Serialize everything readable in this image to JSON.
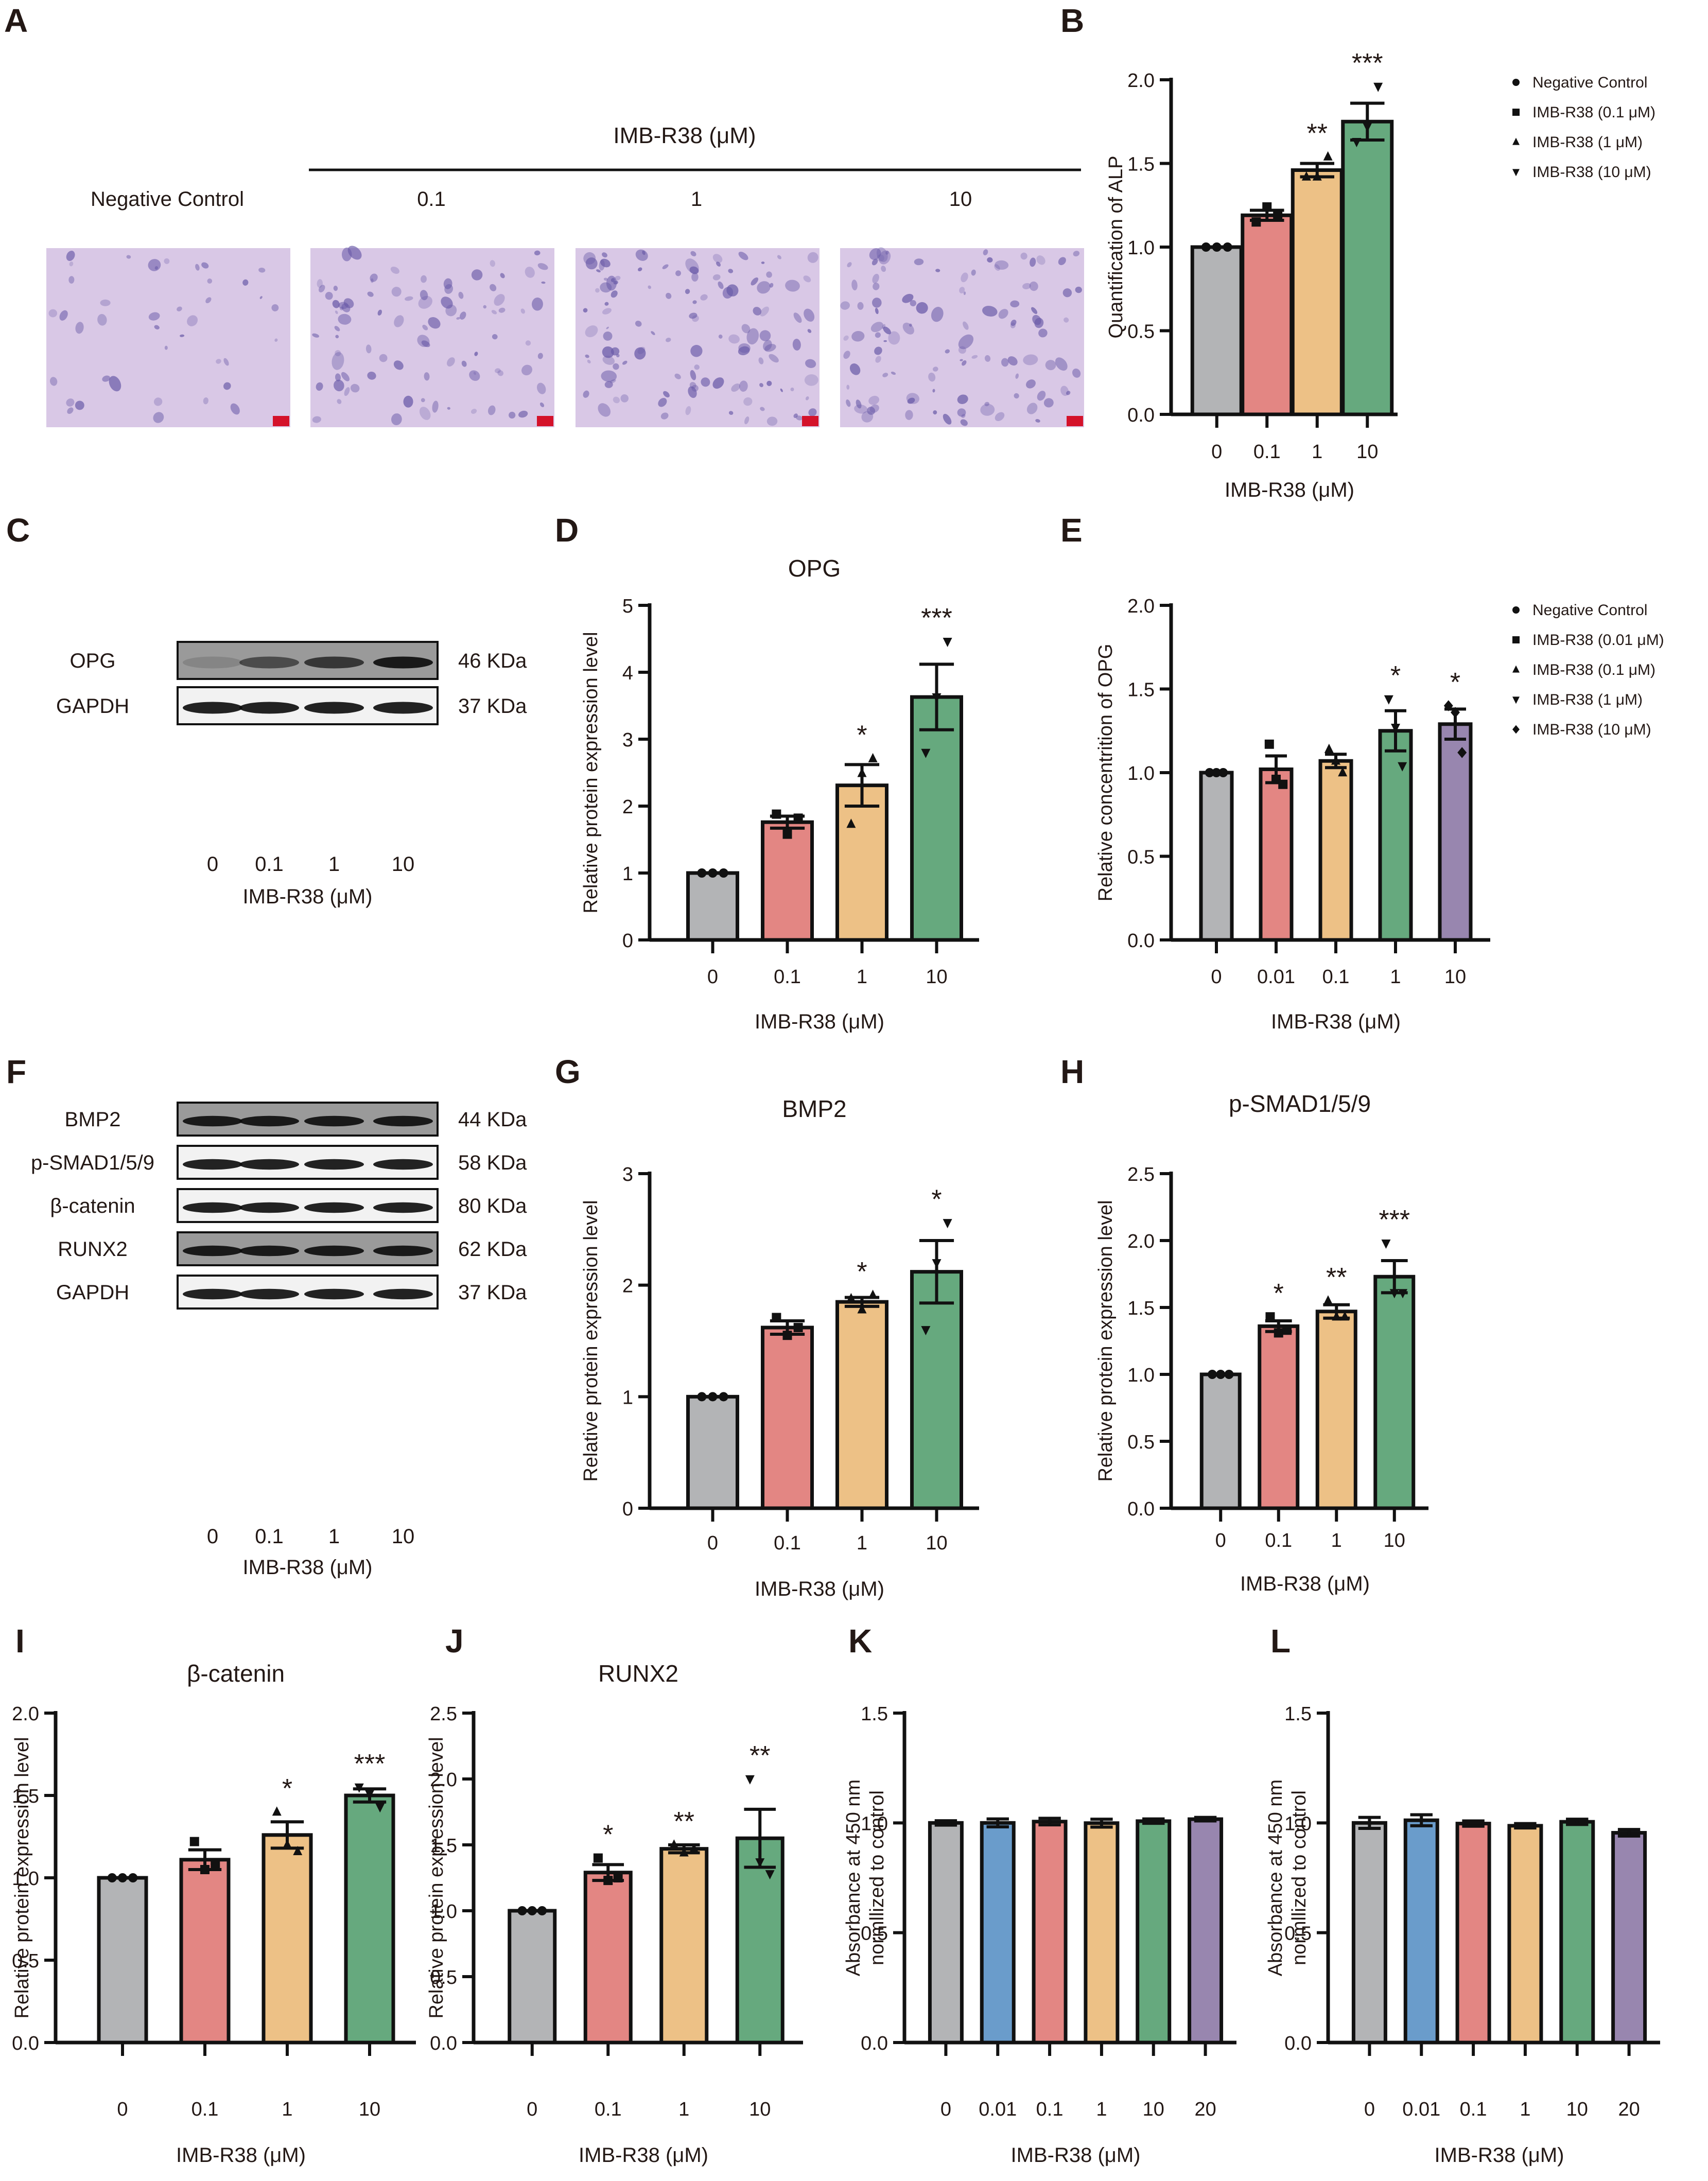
{
  "figure": {
    "panel_letters": [
      "A",
      "B",
      "C",
      "D",
      "E",
      "F",
      "G",
      "H",
      "I",
      "J",
      "K",
      "L"
    ]
  },
  "colors": {
    "gray": "#B3B4B6",
    "red": "#E38683",
    "orange": "#EDC186",
    "green": "#66A97E",
    "purple": "#9886AF",
    "blue": "#6A9CCB",
    "stain_bg": "#D9C8E6",
    "stain_dark": "#6A5BA8",
    "scale_bar": "#D4122A"
  },
  "panelA": {
    "letter": "A",
    "group_label": "IMB-R38 (μM)",
    "images": [
      {
        "label": "Negative Control"
      },
      {
        "label": "0.1"
      },
      {
        "label": "1"
      },
      {
        "label": "10"
      }
    ]
  },
  "panelC": {
    "letter": "C",
    "rows": [
      {
        "protein": "OPG",
        "size": "46 KDa"
      },
      {
        "protein": "GAPDH",
        "size": "37 KDa"
      }
    ],
    "lanes": [
      "0",
      "0.1",
      "1",
      "10"
    ],
    "xlabel": "IMB-R38 (μM)"
  },
  "panelF": {
    "letter": "F",
    "rows": [
      {
        "protein": "BMP2",
        "size": "44 KDa"
      },
      {
        "protein": "p-SMAD1/5/9",
        "size": "58 KDa"
      },
      {
        "protein": "β-catenin",
        "size": "80 KDa"
      },
      {
        "protein": "RUNX2",
        "size": "62 KDa"
      },
      {
        "protein": "GAPDH",
        "size": "37 KDa"
      }
    ],
    "lanes": [
      "0",
      "0.1",
      "1",
      "10"
    ],
    "xlabel": "IMB-R38 (μM)"
  },
  "chart_data": [
    {
      "panel": "B",
      "type": "bar",
      "title": "",
      "categories": [
        "0",
        "0.1",
        "1",
        "10"
      ],
      "values": [
        1.0,
        1.19,
        1.46,
        1.75
      ],
      "errors": [
        0.0,
        0.03,
        0.04,
        0.11
      ],
      "points": [
        [
          1.0,
          1.0,
          1.0
        ],
        [
          1.15,
          1.24,
          1.19
        ],
        [
          1.42,
          1.42,
          1.54
        ],
        [
          1.63,
          1.72,
          1.96
        ]
      ],
      "markers": [
        "circle",
        "square",
        "triangle-up",
        "triangle-down"
      ],
      "significance": [
        "",
        "",
        "**",
        "***"
      ],
      "xlabel": "IMB-R38 (μM)",
      "ylabel": "Quantification of ALP",
      "ylim": [
        0,
        2.0
      ],
      "yticks": [
        "0.0",
        "0.5",
        "1.0",
        "1.5",
        "2.0"
      ],
      "legend": [
        "Negative Control",
        "IMB-R38 (0.1 μM)",
        "IMB-R38 (1 μM)",
        "IMB-R38 (10 μM)"
      ],
      "legend_position": "right",
      "colors": [
        "gray",
        "red",
        "orange",
        "green"
      ]
    },
    {
      "panel": "D",
      "type": "bar",
      "title": "OPG",
      "categories": [
        "0",
        "0.1",
        "1",
        "10"
      ],
      "values": [
        1.0,
        1.76,
        2.31,
        3.63
      ],
      "errors": [
        0.0,
        0.09,
        0.31,
        0.49
      ],
      "points": [
        [
          1.0,
          1.0,
          1.0
        ],
        [
          1.88,
          1.58,
          1.82
        ],
        [
          1.73,
          2.49,
          2.71
        ],
        [
          2.8,
          3.63,
          4.46
        ]
      ],
      "markers": [
        "circle",
        "square",
        "triangle-up",
        "triangle-down"
      ],
      "significance": [
        "",
        "",
        "*",
        "***"
      ],
      "xlabel": "IMB-R38 (μM)",
      "ylabel": "Relative protein expression  level",
      "ylim": [
        0,
        5
      ],
      "yticks": [
        "0",
        "1",
        "2",
        "3",
        "4",
        "5"
      ],
      "colors": [
        "gray",
        "red",
        "orange",
        "green"
      ]
    },
    {
      "panel": "E",
      "type": "bar",
      "title": "",
      "categories": [
        "0",
        "0.01",
        "0.1",
        "1",
        "10"
      ],
      "values": [
        1.0,
        1.02,
        1.07,
        1.25,
        1.29
      ],
      "errors": [
        0.0,
        0.08,
        0.04,
        0.12,
        0.09
      ],
      "points": [
        [
          1.0,
          1.0,
          1.0
        ],
        [
          1.17,
          0.96,
          0.93
        ],
        [
          1.14,
          1.07,
          1.0
        ],
        [
          1.44,
          1.27,
          1.04
        ],
        [
          1.4,
          1.36,
          1.12
        ]
      ],
      "markers": [
        "circle",
        "square",
        "triangle-up",
        "triangle-down",
        "diamond"
      ],
      "significance": [
        "",
        "",
        "",
        "*",
        "*"
      ],
      "xlabel": "IMB-R38 (μM)",
      "ylabel": "Relative concentrition of OPG",
      "ylim": [
        0,
        2.0
      ],
      "yticks": [
        "0.0",
        "0.5",
        "1.0",
        "1.5",
        "2.0"
      ],
      "legend": [
        "Negative Control",
        "IMB-R38 (0.01 μM)",
        "IMB-R38 (0.1 μM)",
        "IMB-R38 (1 μM)",
        "IMB-R38 (10 μM)"
      ],
      "legend_position": "right",
      "colors": [
        "gray",
        "red",
        "orange",
        "green",
        "purple"
      ]
    },
    {
      "panel": "G",
      "type": "bar",
      "title": "BMP2",
      "categories": [
        "0",
        "0.1",
        "1",
        "10"
      ],
      "values": [
        1.0,
        1.62,
        1.85,
        2.12
      ],
      "errors": [
        0.0,
        0.06,
        0.04,
        0.28
      ],
      "points": [
        [
          1.0,
          1.0,
          1.0
        ],
        [
          1.71,
          1.55,
          1.62
        ],
        [
          1.88,
          1.78,
          1.91
        ],
        [
          1.6,
          2.2,
          2.56
        ]
      ],
      "markers": [
        "circle",
        "square",
        "triangle-up",
        "triangle-down"
      ],
      "significance": [
        "",
        "",
        "*",
        "*"
      ],
      "xlabel": "IMB-R38 (μM)",
      "ylabel": "Relative protein expression  level",
      "ylim": [
        0,
        3
      ],
      "yticks": [
        "0",
        "1",
        "2",
        "3"
      ],
      "colors": [
        "gray",
        "red",
        "orange",
        "green"
      ]
    },
    {
      "panel": "H",
      "type": "bar",
      "title": "p-SMAD1/5/9",
      "categories": [
        "0",
        "0.1",
        "1",
        "10"
      ],
      "values": [
        1.0,
        1.36,
        1.47,
        1.73
      ],
      "errors": [
        0.0,
        0.04,
        0.05,
        0.12
      ],
      "points": [
        [
          1.0,
          1.0,
          1.0
        ],
        [
          1.43,
          1.31,
          1.33
        ],
        [
          1.55,
          1.43,
          1.43
        ],
        [
          1.98,
          1.61,
          1.61
        ]
      ],
      "markers": [
        "circle",
        "square",
        "triangle-up",
        "triangle-down"
      ],
      "significance": [
        "",
        "*",
        "**",
        "***"
      ],
      "xlabel": "IMB-R38 (μM)",
      "ylabel": "Relative protein expression  level",
      "ylim": [
        0,
        2.5
      ],
      "yticks": [
        "0.0",
        "0.5",
        "1.0",
        "1.5",
        "2.0",
        "2.5"
      ],
      "colors": [
        "gray",
        "red",
        "orange",
        "green"
      ]
    },
    {
      "panel": "I",
      "type": "bar",
      "title": "β-catenin",
      "categories": [
        "0",
        "0.1",
        "1",
        "10"
      ],
      "values": [
        1.0,
        1.11,
        1.26,
        1.5
      ],
      "errors": [
        0.0,
        0.06,
        0.08,
        0.04
      ],
      "points": [
        [
          1.0,
          1.0,
          1.0
        ],
        [
          1.22,
          1.05,
          1.08
        ],
        [
          1.4,
          1.2,
          1.16
        ],
        [
          1.55,
          1.51,
          1.43
        ]
      ],
      "markers": [
        "circle",
        "square",
        "triangle-up",
        "triangle-down"
      ],
      "significance": [
        "",
        "",
        "*",
        "***"
      ],
      "xlabel": "IMB-R38 (μM)",
      "ylabel": "Relative protein expression  level",
      "ylim": [
        0,
        2.0
      ],
      "yticks": [
        "0.0",
        "0.5",
        "1.0",
        "1.5",
        "2.0"
      ],
      "colors": [
        "gray",
        "red",
        "orange",
        "green"
      ]
    },
    {
      "panel": "J",
      "type": "bar",
      "title": "RUNX2",
      "categories": [
        "0",
        "0.1",
        "1",
        "10"
      ],
      "values": [
        1.0,
        1.29,
        1.47,
        1.55
      ],
      "errors": [
        0.0,
        0.06,
        0.03,
        0.22
      ],
      "points": [
        [
          1.0,
          1.0,
          1.0
        ],
        [
          1.4,
          1.23,
          1.25
        ],
        [
          1.5,
          1.44,
          1.47
        ],
        [
          2.0,
          1.37,
          1.28
        ]
      ],
      "markers": [
        "circle",
        "square",
        "triangle-up",
        "triangle-down"
      ],
      "significance": [
        "",
        "*",
        "**",
        "**"
      ],
      "xlabel": "IMB-R38 (μM)",
      "ylabel": "Relative protein expression  level",
      "ylim": [
        0,
        2.5
      ],
      "yticks": [
        "0.0",
        "0.5",
        "1.0",
        "1.5",
        "2.0",
        "2.5"
      ],
      "colors": [
        "gray",
        "red",
        "orange",
        "green"
      ]
    },
    {
      "panel": "K",
      "type": "bar",
      "title": "",
      "categories": [
        "0",
        "0.01",
        "0.1",
        "1",
        "10",
        "20"
      ],
      "values": [
        1.0,
        1.0,
        1.006,
        0.999,
        1.008,
        1.017
      ],
      "errors": [
        0.01,
        0.018,
        0.015,
        0.018,
        0.01,
        0.008
      ],
      "points": [],
      "markers": [],
      "significance": [
        "",
        "",
        "",
        "",
        "",
        ""
      ],
      "xlabel": "IMB-R38 (μM)",
      "ylabel": "Absorbance at 450 nm\nnormllized to control",
      "ylabel_lines": [
        "Absorbance at 450 nm",
        "normllized to control"
      ],
      "ylim": [
        0,
        1.5
      ],
      "yticks": [
        "0.0",
        "0.5",
        "1.0",
        "1.5"
      ],
      "colors": [
        "gray",
        "blue",
        "red",
        "orange",
        "green",
        "purple"
      ]
    },
    {
      "panel": "L",
      "type": "bar",
      "title": "",
      "categories": [
        "0",
        "0.01",
        "0.1",
        "1",
        "10",
        "20"
      ],
      "values": [
        1.0,
        1.012,
        0.997,
        0.987,
        1.005,
        0.955
      ],
      "errors": [
        0.025,
        0.025,
        0.012,
        0.01,
        0.012,
        0.015
      ],
      "points": [],
      "markers": [],
      "significance": [
        "",
        "",
        "",
        "",
        "",
        ""
      ],
      "xlabel": "IMB-R38 (μM)",
      "ylabel": "Absorbance at 450 nm\nnormllized to control",
      "ylabel_lines": [
        "Absorbance at 450 nm",
        "normllized to control"
      ],
      "ylim": [
        0,
        1.5
      ],
      "yticks": [
        "0.0",
        "0.5",
        "1.0",
        "1.5"
      ],
      "colors": [
        "gray",
        "blue",
        "red",
        "orange",
        "green",
        "purple"
      ]
    }
  ]
}
